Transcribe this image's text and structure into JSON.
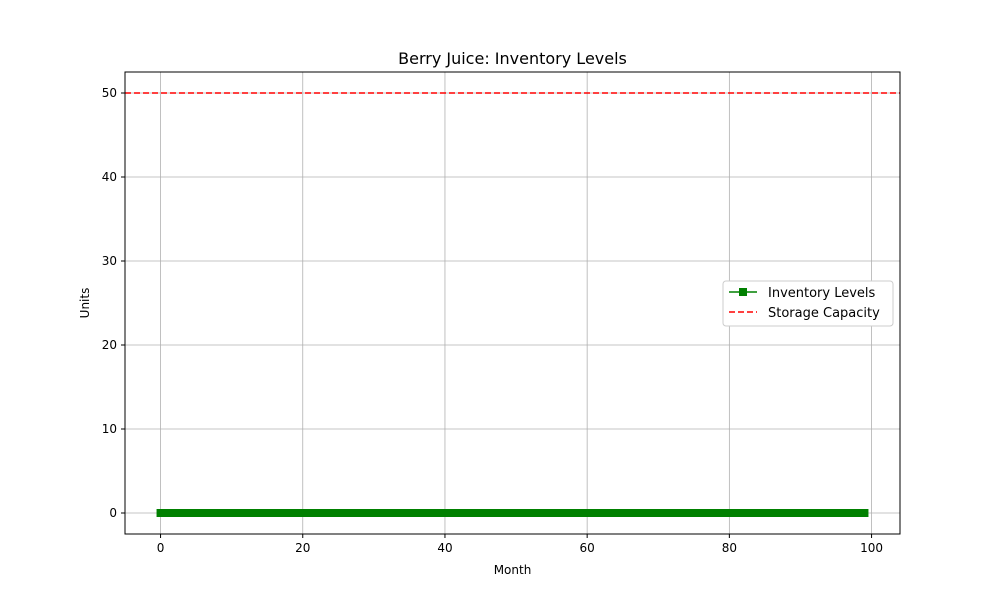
{
  "chart_data": {
    "type": "line",
    "title": "Berry Juice: Inventory Levels",
    "xlabel": "Month",
    "ylabel": "Units",
    "xlim": [
      -5,
      104
    ],
    "ylim": [
      -2.5,
      52.5
    ],
    "xticks": [
      0,
      20,
      40,
      60,
      80,
      100
    ],
    "yticks": [
      0,
      10,
      20,
      30,
      40,
      50
    ],
    "grid": true,
    "legend_position": "center-right",
    "series": [
      {
        "name": "Inventory Levels",
        "color": "#008000",
        "style": "solid",
        "marker": "square",
        "x_start": 0,
        "x_end": 99,
        "x_step": 1,
        "y_constant": 0
      }
    ],
    "reference_lines": [
      {
        "name": "Storage Capacity",
        "y": 50,
        "color": "#ff0000",
        "style": "dashed"
      }
    ]
  }
}
